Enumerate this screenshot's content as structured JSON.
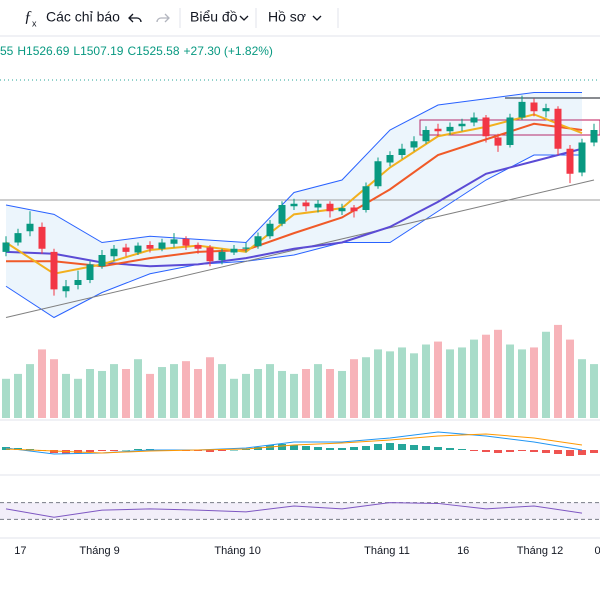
{
  "toolbar": {
    "items": [
      "Các chỉ báo",
      "Biểu đồ",
      "Hồ sơ"
    ]
  },
  "ohlc": [
    "55",
    "H1526.69",
    "L1507.19",
    "C1525.58",
    "+27.30 (+1.82%)"
  ],
  "chart_data": {
    "type": "candlestick",
    "ylim": [
      1160,
      1560
    ],
    "up_color": "#089981",
    "down_color": "#f23645",
    "open": [
      1285,
      1300,
      1318,
      1325,
      1285,
      1222,
      1232,
      1240,
      1262,
      1278,
      1292,
      1284,
      1296,
      1290,
      1298,
      1306,
      1296,
      1292,
      1272,
      1284,
      1290,
      1294,
      1310,
      1330,
      1358,
      1364,
      1356,
      1362,
      1350,
      1356,
      1352,
      1390,
      1428,
      1440,
      1452,
      1462,
      1482,
      1478,
      1486,
      1492,
      1500,
      1468,
      1456,
      1500,
      1524,
      1510,
      1514,
      1450,
      1412,
      1460
    ],
    "high": [
      1310,
      1322,
      1350,
      1332,
      1290,
      1240,
      1255,
      1270,
      1288,
      1296,
      1298,
      1300,
      1302,
      1306,
      1315,
      1310,
      1300,
      1296,
      1290,
      1296,
      1300,
      1316,
      1336,
      1366,
      1370,
      1368,
      1368,
      1366,
      1362,
      1360,
      1396,
      1436,
      1446,
      1458,
      1470,
      1486,
      1490,
      1492,
      1498,
      1508,
      1504,
      1474,
      1506,
      1535,
      1530,
      1522,
      1518,
      1456,
      1466,
      1490
    ],
    "low": [
      1278,
      1295,
      1310,
      1282,
      1215,
      1212,
      1225,
      1235,
      1258,
      1270,
      1278,
      1280,
      1284,
      1286,
      1292,
      1288,
      1282,
      1262,
      1265,
      1280,
      1284,
      1290,
      1306,
      1326,
      1352,
      1350,
      1348,
      1340,
      1344,
      1340,
      1348,
      1386,
      1422,
      1434,
      1446,
      1458,
      1470,
      1472,
      1478,
      1486,
      1460,
      1445,
      1452,
      1496,
      1502,
      1500,
      1440,
      1395,
      1406,
      1454
    ],
    "close": [
      1300,
      1315,
      1330,
      1290,
      1225,
      1230,
      1240,
      1265,
      1280,
      1290,
      1285,
      1295,
      1290,
      1300,
      1305,
      1295,
      1290,
      1270,
      1285,
      1290,
      1292,
      1310,
      1330,
      1360,
      1362,
      1358,
      1362,
      1350,
      1355,
      1350,
      1390,
      1430,
      1440,
      1450,
      1462,
      1480,
      1478,
      1485,
      1490,
      1500,
      1470,
      1455,
      1500,
      1525,
      1510,
      1515,
      1450,
      1410,
      1460,
      1480
    ],
    "volume": {
      "ylim": [
        0,
        100
      ],
      "up_color": "#a8dcc9",
      "down_color": "#f7b3b9",
      "values": [
        40,
        45,
        55,
        70,
        60,
        45,
        40,
        50,
        48,
        55,
        50,
        60,
        45,
        52,
        55,
        58,
        50,
        62,
        55,
        40,
        45,
        50,
        55,
        48,
        45,
        50,
        55,
        50,
        48,
        60,
        62,
        70,
        68,
        72,
        66,
        75,
        78,
        70,
        72,
        80,
        85,
        90,
        75,
        70,
        72,
        88,
        95,
        80,
        60,
        55
      ]
    },
    "lines": [
      {
        "color": "#2962ff",
        "width": 1,
        "x": [
          0,
          4,
          8,
          12,
          16,
          20,
          24,
          28,
          32,
          36,
          40,
          44,
          48
        ],
        "values": [
          1360,
          1345,
          1300,
          1310,
          1305,
          1300,
          1380,
          1400,
          1480,
          1520,
          1530,
          1540,
          1540
        ]
      },
      {
        "color": "#2962ff",
        "width": 1,
        "x": [
          0,
          4,
          8,
          12,
          16,
          20,
          24,
          28,
          32,
          36,
          40,
          44,
          48
        ],
        "values": [
          1230,
          1180,
          1220,
          1250,
          1265,
          1270,
          1280,
          1300,
          1300,
          1350,
          1400,
          1440,
          1440
        ]
      },
      {
        "color": "#808080",
        "width": 1,
        "x": [
          0,
          49
        ],
        "values": [
          1180,
          1400
        ]
      },
      {
        "color": "#5b4bd5",
        "width": 2,
        "x": [
          0,
          4,
          8,
          12,
          16,
          20,
          24,
          28,
          32,
          36,
          40,
          44,
          48
        ],
        "values": [
          1285,
          1282,
          1268,
          1262,
          1265,
          1275,
          1290,
          1300,
          1325,
          1365,
          1410,
          1430,
          1450
        ]
      },
      {
        "color": "#f05a28",
        "width": 2,
        "x": [
          0,
          4,
          8,
          12,
          16,
          20,
          24,
          28,
          32,
          36,
          40,
          44,
          48
        ],
        "values": [
          1270,
          1270,
          1262,
          1275,
          1285,
          1288,
          1315,
          1340,
          1385,
          1440,
          1465,
          1490,
          1480
        ]
      },
      {
        "color": "#f2b01e",
        "width": 2,
        "x": [
          0,
          4,
          8,
          12,
          16,
          20,
          24,
          28,
          32,
          36,
          40,
          44,
          48
        ],
        "values": [
          1300,
          1250,
          1265,
          1288,
          1295,
          1285,
          1345,
          1355,
          1420,
          1470,
          1485,
          1505,
          1475
        ]
      }
    ],
    "band_fill": "rgba(100,170,230,0.12)",
    "hlines": [
      1368
    ],
    "macd": {
      "ylim": [
        -20,
        20
      ],
      "up_color": "#26a69a",
      "down_color": "#ef5350",
      "hist": [
        3,
        2,
        1,
        -1,
        -3,
        -4,
        -3,
        -2,
        -1,
        -1,
        0,
        1,
        1,
        0,
        0,
        -1,
        -1,
        -2,
        -1,
        0,
        1,
        3,
        5,
        6,
        5,
        4,
        3,
        2,
        2,
        3,
        4,
        6,
        7,
        6,
        5,
        4,
        3,
        2,
        1,
        -1,
        -2,
        -3,
        -2,
        -1,
        -2,
        -3,
        -4,
        -6,
        -5,
        -3
      ],
      "x": [
        0,
        4,
        8,
        12,
        16,
        20,
        24,
        28,
        32,
        36,
        40,
        44,
        48
      ],
      "macd_line": {
        "color": "#2196f3",
        "values": [
          2,
          -4,
          -3,
          0,
          0,
          2,
          8,
          8,
          12,
          18,
          14,
          8,
          0
        ]
      },
      "signal_line": {
        "color": "#ff9800",
        "values": [
          1,
          -1,
          -3,
          -1,
          0,
          1,
          5,
          7,
          10,
          14,
          16,
          12,
          5
        ]
      }
    },
    "rsi": {
      "ylim": [
        0,
        100
      ],
      "levels": [
        70,
        30
      ],
      "color": "#7e57c2",
      "x": [
        0,
        4,
        8,
        12,
        16,
        20,
        24,
        28,
        32,
        36,
        40,
        44,
        48
      ],
      "values": [
        55,
        35,
        52,
        55,
        52,
        48,
        62,
        55,
        70,
        68,
        55,
        62,
        45
      ]
    },
    "x_labels": [
      {
        "value": 1.2,
        "label": "17"
      },
      {
        "value": 7.8,
        "label": "Tháng 9"
      },
      {
        "value": 19.3,
        "label": "Tháng 10"
      },
      {
        "value": 31.75,
        "label": "Tháng 11"
      },
      {
        "value": 38.1,
        "label": "16"
      },
      {
        "value": 44.5,
        "label": "Tháng 12"
      },
      {
        "value": 49.3,
        "label": "0"
      }
    ]
  }
}
